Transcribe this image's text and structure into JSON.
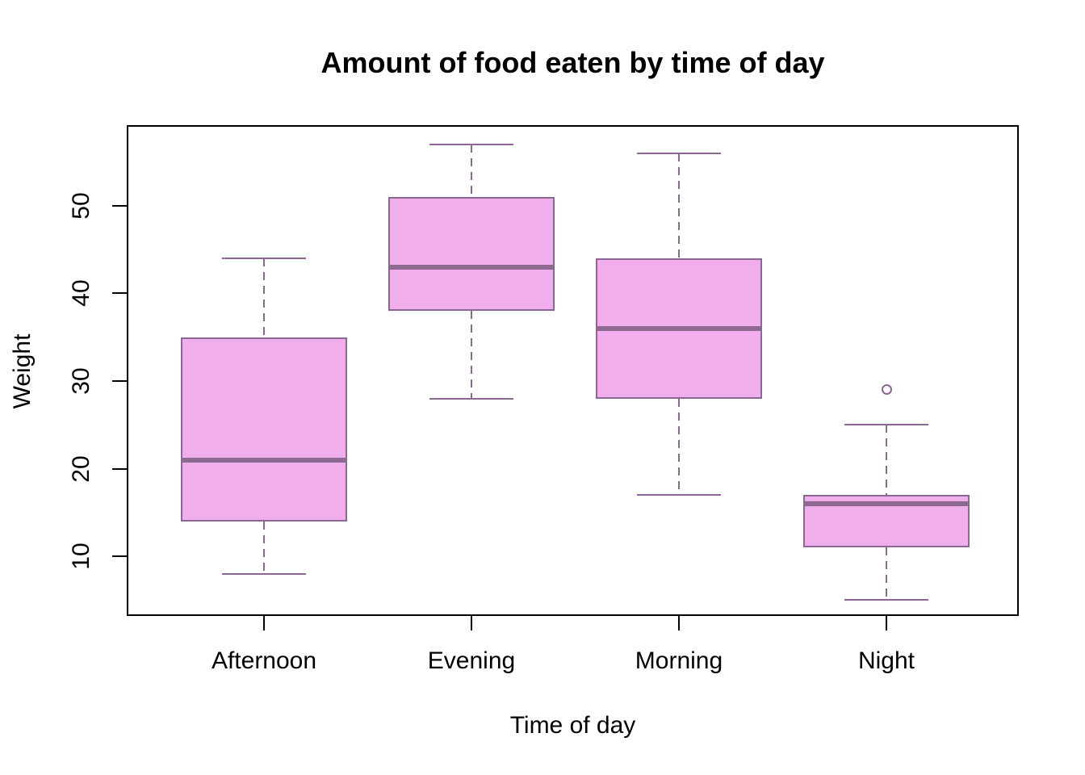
{
  "chart_data": {
    "type": "boxplot",
    "title": "Amount of food eaten by time of day",
    "xlabel": "Time of day",
    "ylabel": "Weight",
    "categories": [
      "Afternoon",
      "Evening",
      "Morning",
      "Night"
    ],
    "y_ticks": [
      10,
      20,
      30,
      40,
      50
    ],
    "ylim": [
      3.2,
      59.2
    ],
    "grid": false,
    "legend": "none",
    "series": [
      {
        "category": "Afternoon",
        "whisker_low": 8,
        "q1": 14,
        "median": 21,
        "q3": 35,
        "whisker_high": 44,
        "outliers": []
      },
      {
        "category": "Evening",
        "whisker_low": 28,
        "q1": 38,
        "median": 43,
        "q3": 51,
        "whisker_high": 57,
        "outliers": []
      },
      {
        "category": "Morning",
        "whisker_low": 17,
        "q1": 28,
        "median": 36,
        "q3": 44,
        "whisker_high": 56,
        "outliers": []
      },
      {
        "category": "Night",
        "whisker_low": 5,
        "q1": 11,
        "median": 16,
        "q3": 17,
        "whisker_high": 25,
        "outliers": [
          29
        ]
      }
    ],
    "colors": {
      "box_fill": "#F0AEEC",
      "box_border": "#8C6793",
      "median": "#8E6A90",
      "whisker": "#8C6793",
      "outlier": "#8C6793",
      "axis": "#000000",
      "text": "#000000",
      "background": "#FFFFFF"
    }
  }
}
